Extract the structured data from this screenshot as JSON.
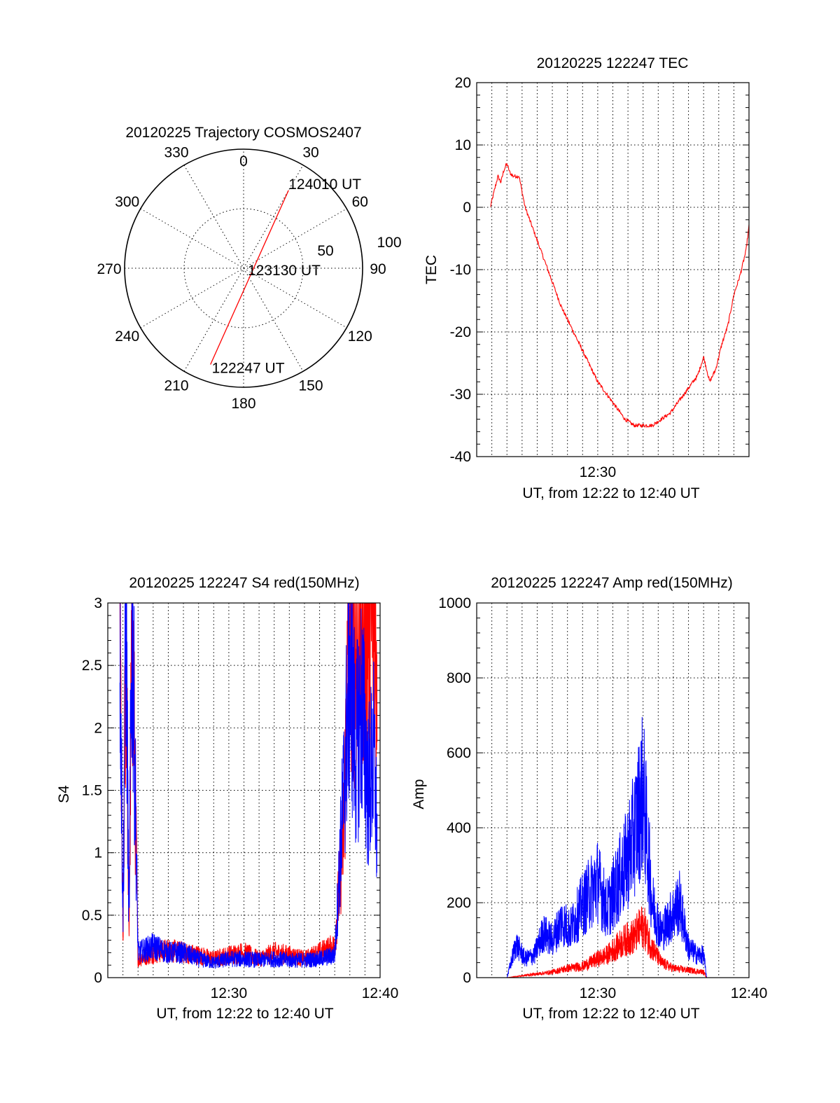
{
  "chart_data": [
    {
      "type": "polar",
      "title": "20120225 Trajectory COSMOS2407",
      "azimuth_labels": [
        "0",
        "30",
        "60",
        "90",
        "120",
        "150",
        "180",
        "210",
        "240",
        "270",
        "300",
        "330"
      ],
      "radial_labels": [
        "50",
        "100"
      ],
      "trajectory_color": "#ff0000",
      "trajectory": [
        {
          "azimuth": 199,
          "elevation": 13,
          "label": "122247 UT"
        },
        {
          "azimuth": 0,
          "elevation": 90,
          "label": "123130 UT"
        },
        {
          "azimuth": 30,
          "elevation": 22,
          "label": "124010 UT"
        }
      ]
    },
    {
      "type": "line",
      "title": "20120225 122247 TEC",
      "xlabel": "UT, from 12:22 to 12:40 UT",
      "ylabel": "TEC",
      "xlim": [
        "12:22",
        "12:40"
      ],
      "ylim": [
        -40,
        20
      ],
      "x_ticks": [
        "12:30"
      ],
      "y_ticks": [
        "20",
        "10",
        "0",
        "-10",
        "-20",
        "-30",
        "-40"
      ],
      "grid": true,
      "series": [
        {
          "color": "#ff0000",
          "x": [
            "12:22:54",
            "12:23:12",
            "12:23:24",
            "12:23:36",
            "12:23:48",
            "12:24:00",
            "12:24:12",
            "12:24:24",
            "12:24:48",
            "12:25:12",
            "12:25:48",
            "12:26:24",
            "12:27:00",
            "12:27:36",
            "12:28:12",
            "12:28:48",
            "12:29:24",
            "12:30:00",
            "12:30:36",
            "12:31:12",
            "12:31:48",
            "12:32:24",
            "12:33:00",
            "12:33:36",
            "12:34:12",
            "12:34:48",
            "12:35:24",
            "12:36:00",
            "12:36:36",
            "12:37:00",
            "12:37:24",
            "12:37:48",
            "12:38:12",
            "12:38:36",
            "12:39:00",
            "12:39:24",
            "12:39:48",
            "12:40:00"
          ],
          "values": [
            0,
            3,
            5,
            4,
            6,
            7,
            5.5,
            5,
            5,
            0,
            -4,
            -8,
            -12,
            -16,
            -19,
            -22,
            -25,
            -28,
            -30,
            -32,
            -34,
            -35,
            -35,
            -35,
            -34,
            -33,
            -31,
            -29,
            -27,
            -24,
            -28,
            -26,
            -22,
            -19,
            -14,
            -11,
            -7,
            -3
          ]
        }
      ]
    },
    {
      "type": "line",
      "title": "20120225 122247 S4 red(150MHz)",
      "xlabel": "UT, from 12:22 to 12:40 UT",
      "ylabel": "S4",
      "xlim": [
        "12:22",
        "12:40"
      ],
      "ylim": [
        0,
        3
      ],
      "x_ticks": [
        "12:30",
        "12:40"
      ],
      "y_ticks": [
        "3",
        "2.5",
        "2",
        "1.5",
        "1",
        "0.5",
        "0"
      ],
      "grid": true,
      "series": [
        {
          "color": "#ff0000",
          "x": [
            "12:22:48",
            "12:23:00",
            "12:23:12",
            "12:23:24",
            "12:23:36",
            "12:24:00",
            "12:25:00",
            "12:26:00",
            "12:27:00",
            "12:28:00",
            "12:29:00",
            "12:30:00",
            "12:31:00",
            "12:32:00",
            "12:33:00",
            "12:34:00",
            "12:35:00",
            "12:36:00",
            "12:37:00",
            "12:37:36",
            "12:38:00",
            "12:38:24",
            "12:38:48",
            "12:39:12",
            "12:39:36",
            "12:39:48"
          ],
          "values": [
            3,
            0.2,
            3,
            0.3,
            3,
            0.15,
            0.2,
            0.22,
            0.2,
            0.18,
            0.15,
            0.18,
            0.2,
            0.15,
            0.2,
            0.18,
            0.15,
            0.2,
            0.25,
            1.2,
            3,
            2.6,
            3,
            2.8,
            3,
            2.5
          ]
        },
        {
          "color": "#0000ff",
          "x": [
            "12:22:48",
            "12:23:00",
            "12:23:12",
            "12:23:24",
            "12:23:36",
            "12:24:00",
            "12:25:00",
            "12:26:00",
            "12:27:00",
            "12:28:00",
            "12:29:00",
            "12:30:00",
            "12:31:00",
            "12:32:00",
            "12:33:00",
            "12:34:00",
            "12:35:00",
            "12:36:00",
            "12:37:00",
            "12:37:36",
            "12:38:00",
            "12:38:24",
            "12:38:48",
            "12:39:12",
            "12:39:36",
            "12:39:48"
          ],
          "values": [
            3,
            0.5,
            3,
            0.4,
            3,
            0.2,
            0.25,
            0.2,
            0.2,
            0.15,
            0.12,
            0.15,
            0.15,
            0.14,
            0.15,
            0.14,
            0.14,
            0.15,
            0.18,
            1.5,
            2.5,
            1.8,
            2.2,
            1.5,
            1.8,
            1.1
          ]
        }
      ]
    },
    {
      "type": "line",
      "title": "20120225 122247 Amp red(150MHz)",
      "xlabel": "UT, from 12:22 to 12:40 UT",
      "ylabel": "Amp",
      "xlim": [
        "12:22",
        "12:40"
      ],
      "ylim": [
        0,
        1000
      ],
      "x_ticks": [
        "12:30",
        "12:40"
      ],
      "y_ticks": [
        "1000",
        "800",
        "600",
        "400",
        "200",
        "0"
      ],
      "grid": true,
      "series": [
        {
          "color": "#0000ff",
          "x": [
            "12:22:48",
            "12:24:00",
            "12:24:36",
            "12:25:12",
            "12:25:48",
            "12:26:24",
            "12:27:00",
            "12:27:36",
            "12:28:12",
            "12:28:48",
            "12:29:24",
            "12:30:00",
            "12:30:36",
            "12:31:12",
            "12:31:48",
            "12:32:24",
            "12:33:00",
            "12:33:36",
            "12:34:12",
            "12:34:48",
            "12:35:24",
            "12:36:00",
            "12:36:36",
            "12:37:00",
            "12:37:12",
            "12:38:00",
            "12:40:00"
          ],
          "values": [
            0,
            0,
            90,
            50,
            60,
            120,
            100,
            150,
            130,
            180,
            220,
            260,
            180,
            240,
            300,
            380,
            500,
            200,
            120,
            160,
            200,
            80,
            60,
            60,
            0,
            0,
            0
          ]
        },
        {
          "color": "#ff0000",
          "x": [
            "12:22:48",
            "12:24:00",
            "12:25:00",
            "12:26:00",
            "12:27:00",
            "12:28:00",
            "12:29:00",
            "12:30:00",
            "12:30:36",
            "12:31:12",
            "12:31:48",
            "12:32:24",
            "12:33:00",
            "12:33:36",
            "12:34:12",
            "12:35:00",
            "12:36:00",
            "12:37:00",
            "12:37:12",
            "12:40:00"
          ],
          "values": [
            0,
            0,
            5,
            10,
            15,
            25,
            30,
            50,
            60,
            80,
            100,
            110,
            140,
            80,
            40,
            25,
            20,
            15,
            0,
            0
          ]
        }
      ]
    }
  ]
}
